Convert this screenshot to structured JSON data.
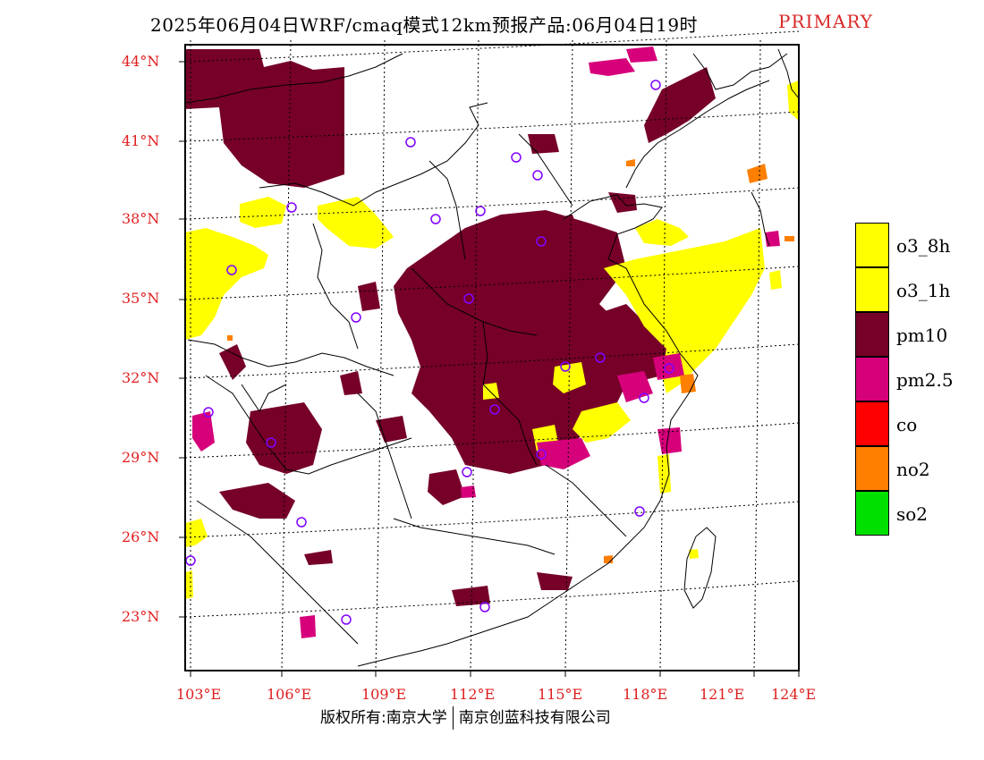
{
  "header": {
    "title": "2025年06月04日WRF/cmaq模式12km预报产品:06月04日19时",
    "badge": "PRIMARY"
  },
  "colors": {
    "pm10": "#760028",
    "pm25": "#d6007a",
    "o3": "#ffff00",
    "co": "#ff0000",
    "no2": "#ff7f00",
    "so2": "#00e000",
    "tick_label": "#e01e1e",
    "site_marker": "#8000ff"
  },
  "map": {
    "lat_labels": [
      "44°N",
      "41°N",
      "38°N",
      "35°N",
      "32°N",
      "29°N",
      "26°N",
      "23°N"
    ],
    "lon_labels": [
      "103°E",
      "106°E",
      "109°E",
      "112°E",
      "115°E",
      "118°E",
      "121°E",
      "124°E"
    ]
  },
  "legend": {
    "items": [
      {
        "label": "o3_8h",
        "color": "#ffff00"
      },
      {
        "label": "o3_1h",
        "color": "#ffff00"
      },
      {
        "label": "pm10",
        "color": "#760028"
      },
      {
        "label": "pm2.5",
        "color": "#d6007a"
      },
      {
        "label": "co",
        "color": "#ff0000"
      },
      {
        "label": "no2",
        "color": "#ff7f00"
      },
      {
        "label": "so2",
        "color": "#00e000"
      }
    ]
  },
  "footer": {
    "left": "版权所有:南京大学",
    "right": "南京创蓝科技有限公司"
  }
}
